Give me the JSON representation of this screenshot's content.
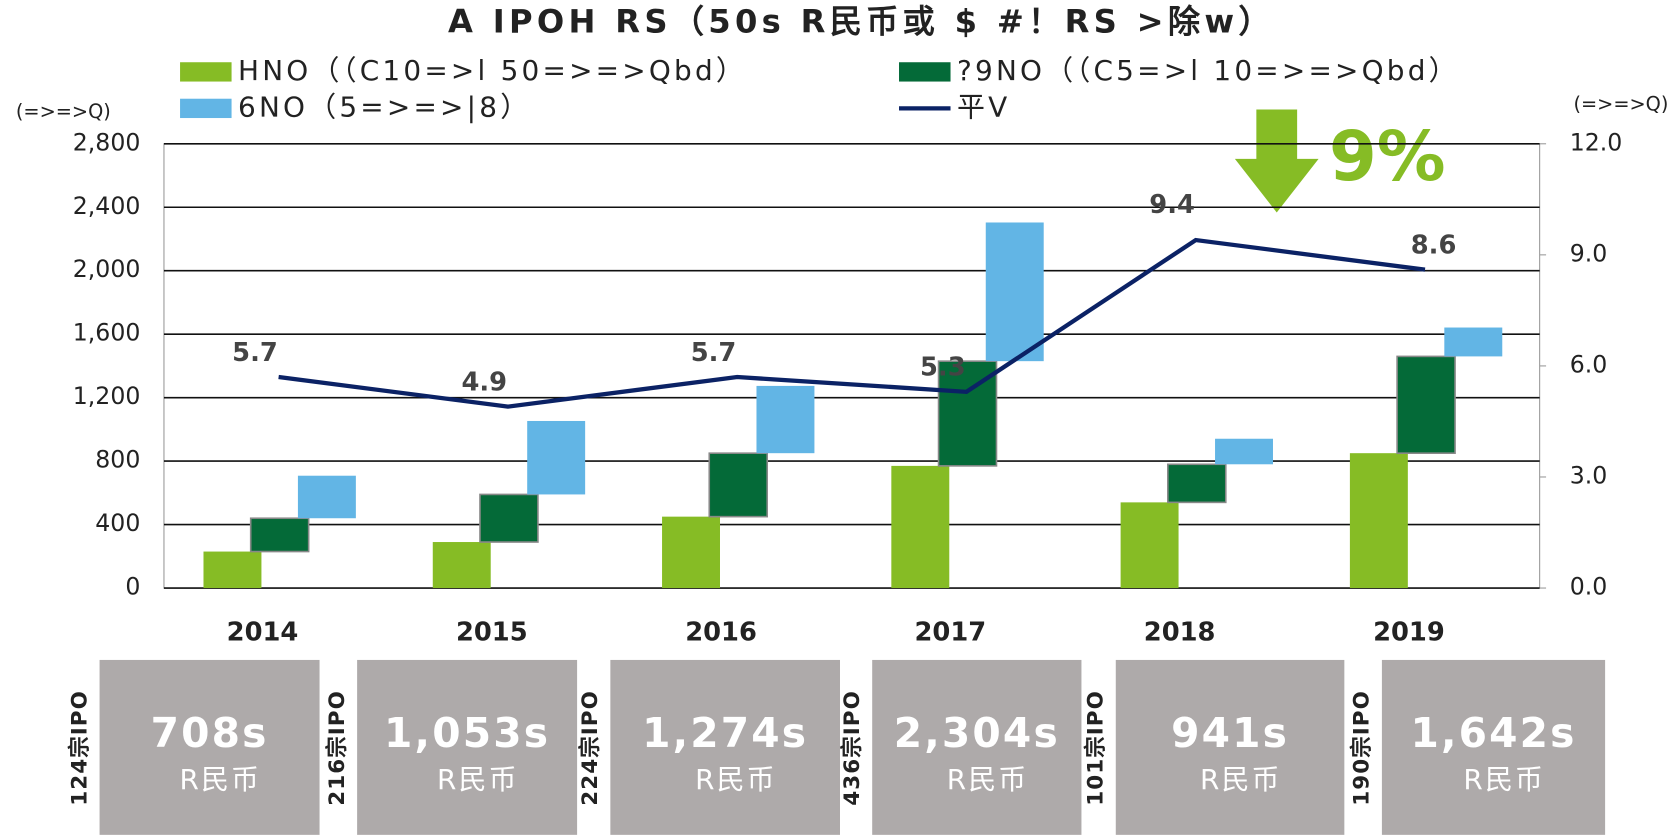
{
  "chart_data": {
    "type": "waterfall",
    "title": "A    IPOH  RS（50s  R民币或  $  #！RS  >除w）",
    "y_label": "(=>=>Q)",
    "y2_label": "(=>=>Q)",
    "annotation": "9%",
    "categories": [
      "2014",
      "2015",
      "2016",
      "2017",
      "2018",
      "2019"
    ],
    "series": [
      {
        "name": "HNO（（C10=>l 50=>=>Qbd）",
        "color": "#86bc25",
        "values": [
          230,
          290,
          450,
          770,
          540,
          850
        ]
      },
      {
        "name": "?9NO（（C5=>l 10=>=>Qbd）",
        "color": "#046a38",
        "values": [
          210,
          300,
          400,
          660,
          240,
          610
        ]
      },
      {
        "name": "6NO（5=>=>|8）",
        "color": "#62b5e5",
        "values": [
          268,
          463,
          424,
          874,
          161,
          182
        ]
      },
      {
        "name": "平V",
        "color": "#0b2265",
        "axis": "y2",
        "values": [
          5.7,
          4.9,
          5.7,
          5.3,
          9.4,
          8.6
        ]
      }
    ],
    "ylim": [
      0,
      2800
    ],
    "yticks": [
      0,
      {
        "value": 400,
        "label": "400"
      },
      {
        "value": 800,
        "label": "800"
      },
      {
        "value": 1200,
        "label": "1,200"
      },
      {
        "value": 1600,
        "label": "1,600"
      },
      {
        "value": 2000,
        "label": "2,000"
      },
      {
        "value": 2400,
        "label": "2,400"
      },
      {
        "value": 2800,
        "label": "2,800"
      }
    ],
    "y2lim": [
      0,
      12
    ],
    "y2ticks": [
      {
        "value": 0,
        "label": "0.0"
      },
      {
        "value": 3,
        "label": "3.0"
      },
      {
        "value": 6,
        "label": "6.0"
      },
      {
        "value": 9,
        "label": "9.0"
      },
      {
        "value": 12,
        "label": "12.0"
      }
    ],
    "grid": true,
    "boxes": [
      {
        "count": "124宗IPO",
        "amount": "708s",
        "unit": "R民币"
      },
      {
        "count": "216宗IPO",
        "amount": "1,053s",
        "unit": "R民币"
      },
      {
        "count": "224宗IPO",
        "amount": "1,274s",
        "unit": "R民币"
      },
      {
        "count": "436宗IPO",
        "amount": "2,304s",
        "unit": "R民币"
      },
      {
        "count": "101宗IPO",
        "amount": "941s",
        "unit": "R民币"
      },
      {
        "count": "190宗IPO",
        "amount": "1,642s",
        "unit": "R民币"
      }
    ]
  }
}
